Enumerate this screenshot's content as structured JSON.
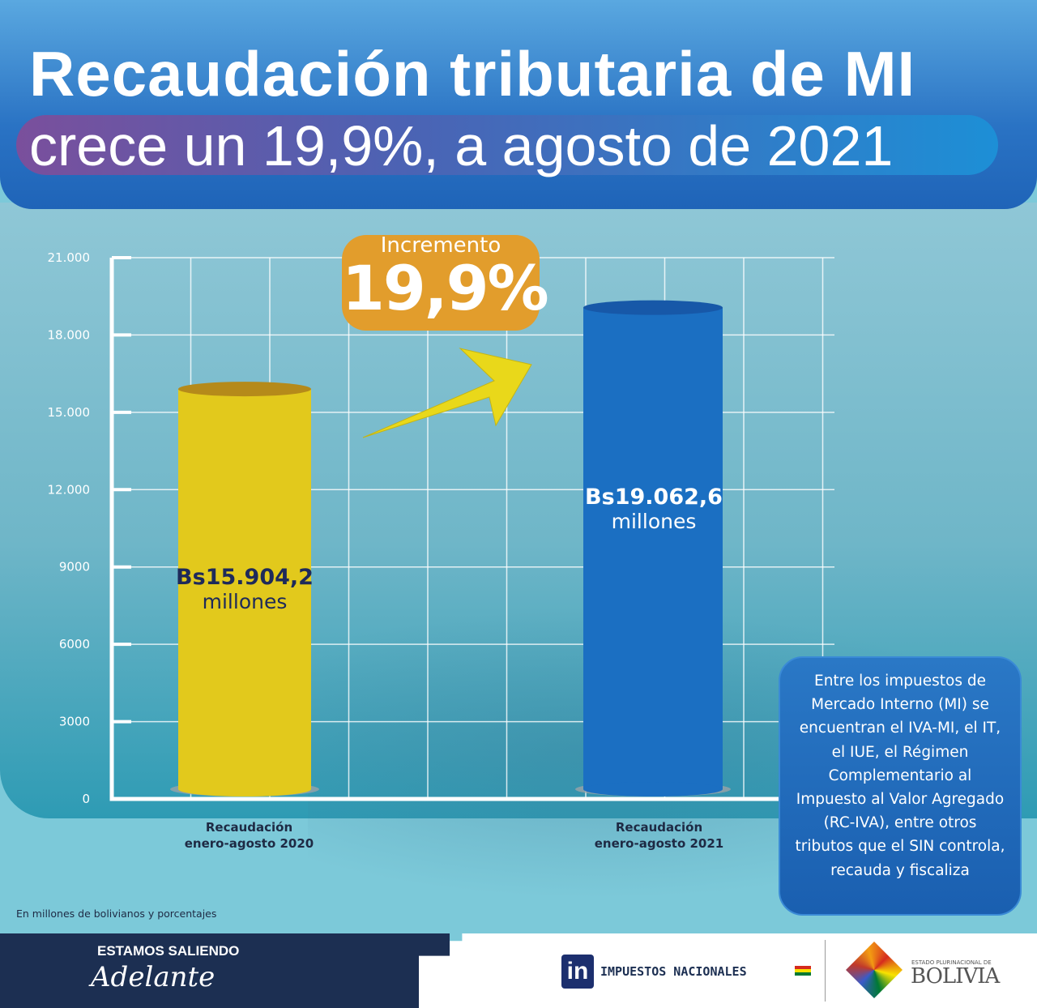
{
  "header": {
    "title": "Recaudación tributaria de MI",
    "subtitle": "crece un 19,9%, a agosto de 2021"
  },
  "badge": {
    "label": "Incremento",
    "value": "19,9%",
    "color": "#e29d2c"
  },
  "chart_data": {
    "type": "bar",
    "categories": [
      "Recaudación enero-agosto 2020",
      "Recaudación enero-agosto 2021"
    ],
    "category_lines": [
      [
        "Recaudación",
        "enero-agosto 2020"
      ],
      [
        "Recaudación",
        "enero-agosto 2021"
      ]
    ],
    "values": [
      15904.2,
      19062.6
    ],
    "data_labels": [
      {
        "amount": "Bs15.904,2",
        "unit": "millones"
      },
      {
        "amount": "Bs19.062,6",
        "unit": "millones"
      }
    ],
    "colors": [
      "#e2c91c",
      "#1b6fc2"
    ],
    "ylim": [
      0,
      21000
    ],
    "yticks": [
      0,
      3000,
      6000,
      9000,
      12000,
      15000,
      18000,
      21000
    ],
    "ytick_labels": [
      "0",
      "3000",
      "6000",
      "9000",
      "12.000",
      "15.000",
      "18.000",
      "21.000"
    ],
    "grid": true,
    "note": "En millones de bolivianos y porcentajes"
  },
  "info_box": "Entre los impuestos de Mercado Interno (MI) se encuentran el IVA-MI, el IT, el IUE, el Régimen Complementario al Impuesto al Valor Agregado (RC-IVA), entre otros tributos que el SIN controla, recauda y fiscaliza",
  "footer": {
    "slogan_line1": "ESTAMOS SALIENDO",
    "slogan_line2": "Adelante",
    "institution": "IMPUESTOS NACIONALES",
    "institution_logo": "in",
    "state_small": "ESTADO PLURINACIONAL DE",
    "state": "BOLIVIA"
  }
}
